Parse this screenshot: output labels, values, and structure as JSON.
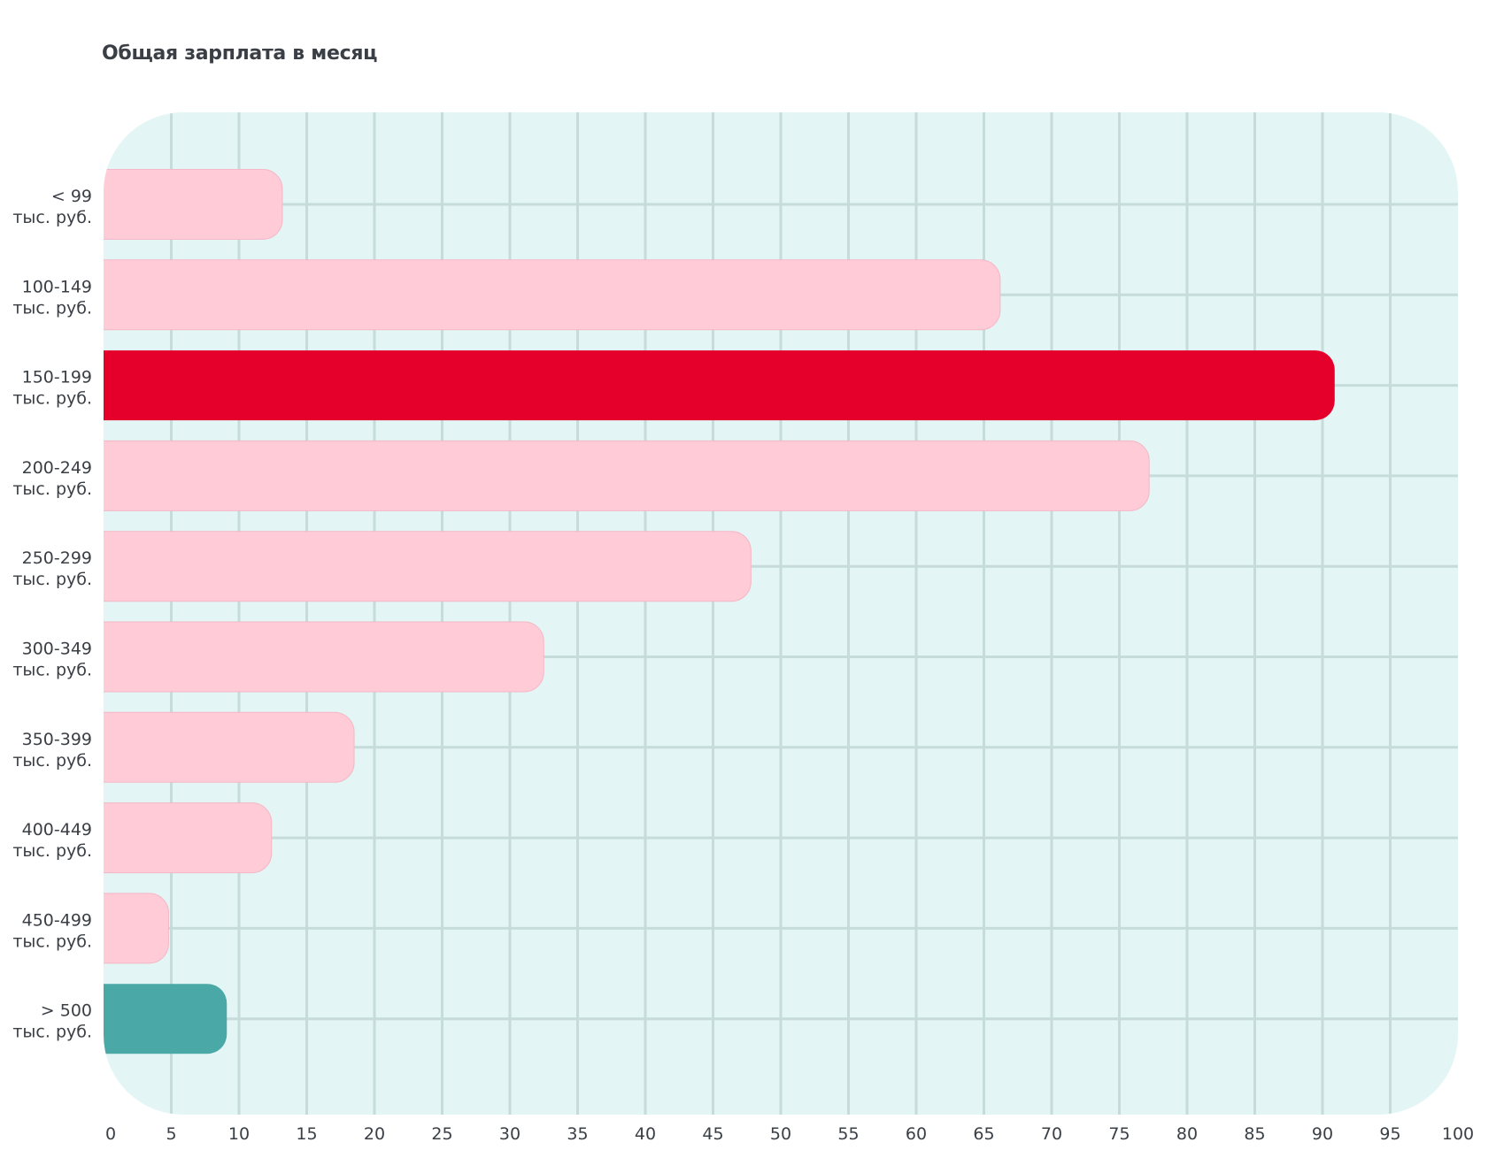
{
  "chart_data": {
    "type": "bar",
    "orientation": "horizontal",
    "title": "Общая зарплата в месяц",
    "xlabel": "",
    "ylabel": "",
    "xlim": [
      0,
      100
    ],
    "x_ticks": [
      "0",
      "5",
      "10",
      "15",
      "20",
      "25",
      "30",
      "35",
      "40",
      "45",
      "50",
      "55",
      "60",
      "65",
      "70",
      "75",
      "80",
      "85",
      "90",
      "95",
      "100"
    ],
    "grid": true,
    "categories": [
      {
        "line1": "< 99",
        "line2": "тыс. руб."
      },
      {
        "line1": "100-149",
        "line2": "тыс. руб."
      },
      {
        "line1": "150-199",
        "line2": "тыс. руб."
      },
      {
        "line1": "200-249",
        "line2": "тыс. руб."
      },
      {
        "line1": "250-299",
        "line2": "тыс. руб."
      },
      {
        "line1": "300-349",
        "line2": "тыс. руб."
      },
      {
        "line1": "350-399",
        "line2": "тыс. руб."
      },
      {
        "line1": "400-449",
        "line2": "тыс. руб."
      },
      {
        "line1": "450-499",
        "line2": "тыс. руб."
      },
      {
        "line1": "> 500",
        "line2": "тыс. руб."
      }
    ],
    "values": [
      13.2,
      66.2,
      90.9,
      77.2,
      47.8,
      32.5,
      18.5,
      12.4,
      4.8,
      9.1
    ],
    "bar_colors": [
      "#fecbd6",
      "#fecbd6",
      "#e4002b",
      "#fecbd6",
      "#fecbd6",
      "#fecbd6",
      "#fecbd6",
      "#fecbd6",
      "#fecbd6",
      "#4aa9a6"
    ],
    "colors": {
      "plot_background": "#e3f5f5",
      "grid": "#c5dcdb",
      "default_bar": "#fecbd6",
      "highlight_bar": "#e4002b",
      "top_bar": "#4aa9a6"
    }
  }
}
